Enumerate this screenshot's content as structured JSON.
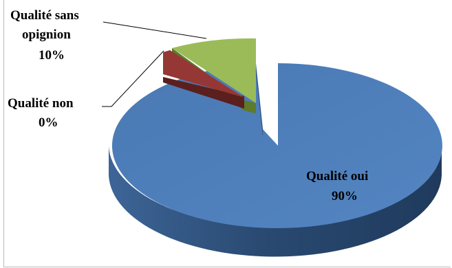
{
  "chart_data": {
    "type": "pie",
    "style": "3d-exploded",
    "slices": [
      {
        "label": "Qualité oui",
        "percent_text": "90%",
        "value": 90,
        "color": "#4f81bd",
        "side_color": "#2c4d77"
      },
      {
        "label": "Qualité non",
        "percent_text": "0%",
        "value": 0.3,
        "color": "#953735",
        "side_color": "#5b1f1d"
      },
      {
        "label_lines": [
          "Qualité sans",
          "opignion"
        ],
        "percent_text": "10%",
        "value": 10,
        "color": "#9bbb59",
        "side_color": "#5e7a2a"
      }
    ],
    "legend": "none",
    "data_labels": "category-and-percent"
  }
}
